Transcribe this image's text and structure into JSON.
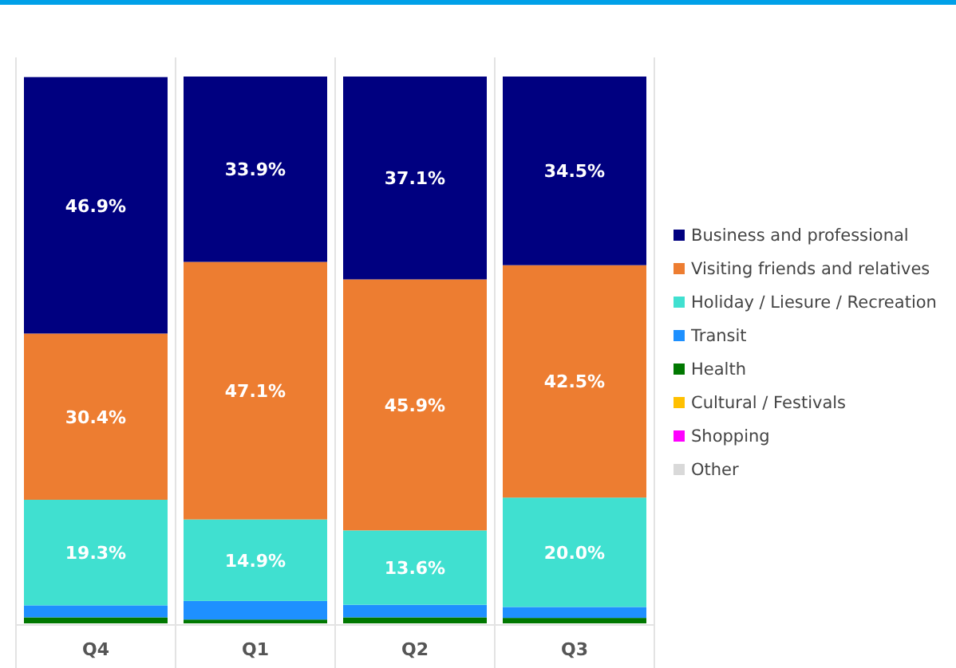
{
  "chart_data": {
    "type": "bar",
    "stacked": true,
    "categories": [
      "Q4",
      "Q1",
      "Q2",
      "Q3"
    ],
    "ylim": [
      0,
      100
    ],
    "tick_labels": "x",
    "legend": "right",
    "grid": "x",
    "series": [
      {
        "name": "Other",
        "color": "#d9d9d9",
        "values": [
          null,
          null,
          null,
          null
        ]
      },
      {
        "name": "Shopping",
        "color": "#ff00ff",
        "values": [
          null,
          null,
          null,
          null
        ]
      },
      {
        "name": "Cultural / Festivals",
        "color": "#ffc000",
        "values": [
          null,
          null,
          null,
          null
        ]
      },
      {
        "name": "Health",
        "color": "#007800",
        "values": [
          1.1,
          0.7,
          1.1,
          1.0
        ]
      },
      {
        "name": "Transit",
        "color": "#1e90ff",
        "values": [
          2.2,
          3.4,
          2.3,
          2.0
        ]
      },
      {
        "name": "Holiday / Liesure / Recreation",
        "color": "#40e0d0",
        "values": [
          19.3,
          14.9,
          13.6,
          20.0
        ],
        "value_labels": [
          "19.3%",
          "14.9%",
          "13.6%",
          "20.0%"
        ]
      },
      {
        "name": "Visiting friends and relatives",
        "color": "#ed7d31",
        "values": [
          30.4,
          47.1,
          45.9,
          42.5
        ],
        "value_labels": [
          "30.4%",
          "47.1%",
          "45.9%",
          "42.5%"
        ]
      },
      {
        "name": "Business and professional",
        "color": "#000080",
        "values": [
          46.9,
          33.9,
          37.1,
          34.5
        ],
        "value_labels": [
          "46.9%",
          "33.9%",
          "37.1%",
          "34.5%"
        ]
      }
    ]
  }
}
